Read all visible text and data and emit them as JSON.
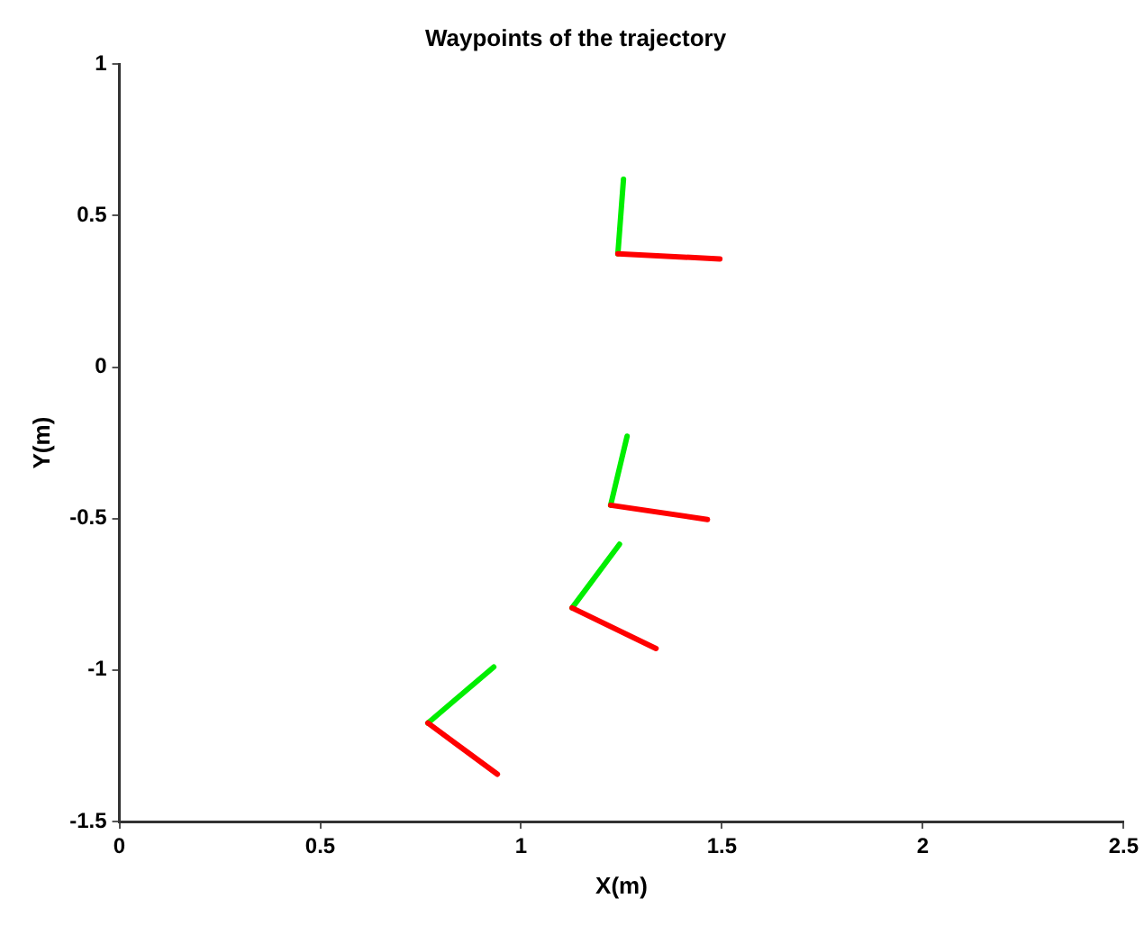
{
  "chart_data": {
    "type": "line",
    "title": "Waypoints of the trajectory",
    "xlabel": "X(m)",
    "ylabel": "Y(m)",
    "xlim": [
      0,
      2.5
    ],
    "xticks": [
      0,
      0.5,
      1,
      1.5,
      2,
      2.5
    ],
    "ylim": [
      -1.5,
      1
    ],
    "yticks": [
      -1.5,
      -1,
      -0.5,
      0,
      0.5,
      1
    ],
    "grid": false,
    "legend": false,
    "marker": "none",
    "line_style": "solid",
    "series": [
      {
        "color": "#ff0000",
        "x": [
          1.241,
          1.495
        ],
        "values": [
          0.374,
          0.357
        ]
      },
      {
        "color": "#00ee00",
        "x": [
          1.241,
          1.255
        ],
        "values": [
          0.374,
          0.62
        ]
      },
      {
        "color": "#ff0000",
        "x": [
          1.223,
          1.464
        ],
        "values": [
          -0.456,
          -0.503
        ]
      },
      {
        "color": "#00ee00",
        "x": [
          1.223,
          1.264
        ],
        "values": [
          -0.456,
          -0.228
        ]
      },
      {
        "color": "#ff0000",
        "x": [
          1.127,
          1.336
        ],
        "values": [
          -0.795,
          -0.929
        ]
      },
      {
        "color": "#00ee00",
        "x": [
          1.127,
          1.245
        ],
        "values": [
          -0.795,
          -0.585
        ]
      },
      {
        "color": "#ff0000",
        "x": [
          0.768,
          0.941
        ],
        "values": [
          -1.175,
          -1.344
        ]
      },
      {
        "color": "#00ee00",
        "x": [
          0.768,
          0.932
        ],
        "values": [
          -1.175,
          -0.99
        ]
      }
    ]
  }
}
